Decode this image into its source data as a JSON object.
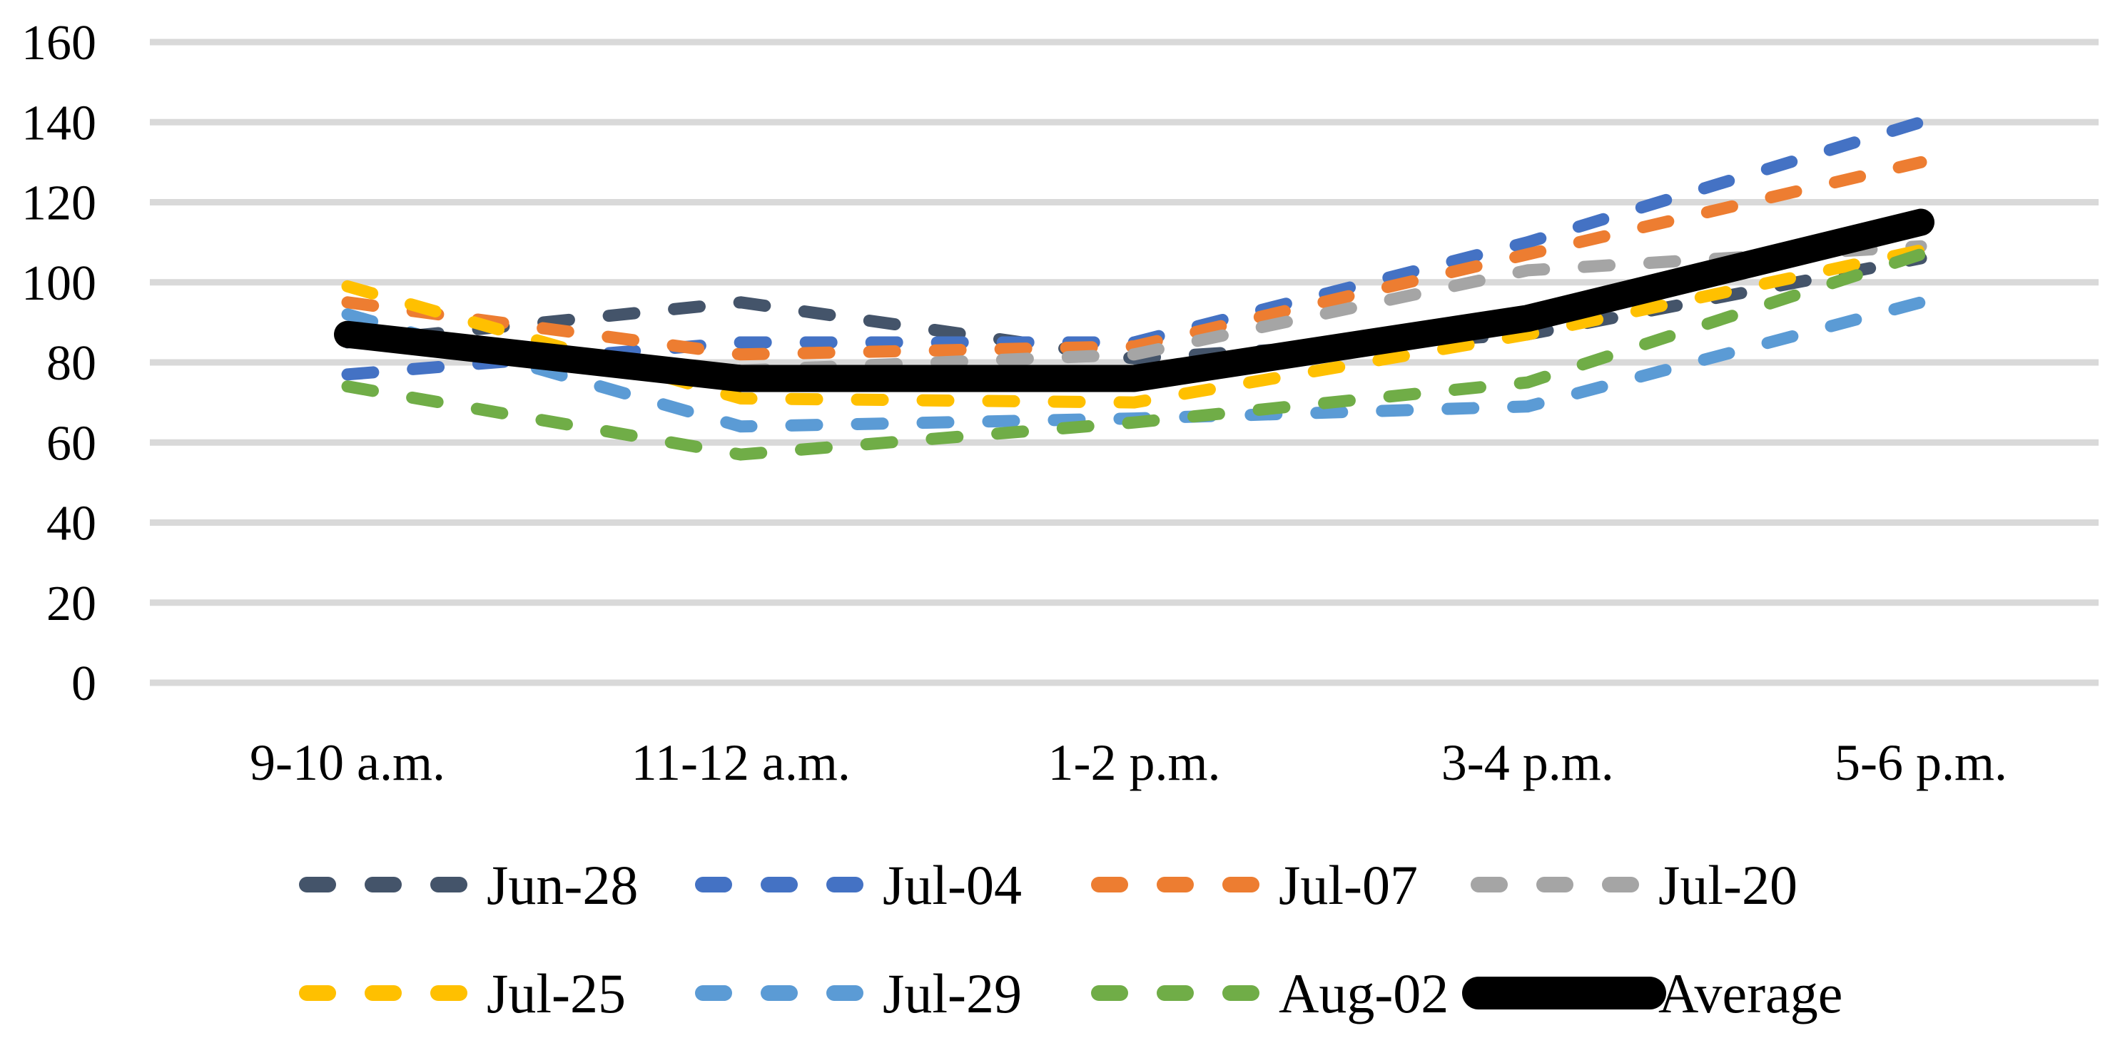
{
  "chart_data": {
    "type": "line",
    "title": "",
    "xlabel": "",
    "ylabel": "",
    "categories": [
      "9-10 a.m.",
      "11-12 a.m.",
      "1-2 p.m.",
      "3-4 p.m.",
      "5-6 p.m."
    ],
    "series": [
      {
        "name": "Jun-28",
        "color": "#44546A",
        "style": "dashed",
        "values": [
          85,
          95,
          81,
          87,
          106
        ]
      },
      {
        "name": "Jul-04",
        "color": "#4472C4",
        "style": "dashed",
        "values": [
          77,
          85,
          85,
          110,
          140
        ]
      },
      {
        "name": "Jul-07",
        "color": "#ED7D31",
        "style": "dashed",
        "values": [
          95,
          82,
          84,
          107,
          130
        ]
      },
      {
        "name": "Jul-20",
        "color": "#A5A5A5",
        "style": "dashed",
        "values": [
          87,
          78,
          82,
          103,
          109
        ]
      },
      {
        "name": "Jul-25",
        "color": "#FFC000",
        "style": "dashed",
        "values": [
          99,
          71,
          70,
          87,
          108
        ]
      },
      {
        "name": "Jul-29",
        "color": "#5B9BD5",
        "style": "dashed",
        "values": [
          92,
          64,
          66,
          69,
          95
        ]
      },
      {
        "name": "Aug-02",
        "color": "#70AD47",
        "style": "dashed",
        "values": [
          74,
          57,
          65,
          75,
          107
        ]
      },
      {
        "name": "Average",
        "color": "#000000",
        "style": "solid",
        "values": [
          87,
          76,
          76,
          91,
          115
        ]
      }
    ],
    "ylim": [
      0,
      160
    ],
    "ytick_step": 20,
    "ytick_labels": [
      "0",
      "20",
      "40",
      "60",
      "80",
      "100",
      "120",
      "140",
      "160"
    ],
    "grid": true,
    "gridline_color": "#D9D9D9",
    "text_color": "#000000",
    "background": "#FFFFFF",
    "legend_position": "bottom",
    "legend_rows": [
      [
        "Jun-28",
        "Jul-04",
        "Jul-07",
        "Jul-20"
      ],
      [
        "Jul-25",
        "Jul-29",
        "Aug-02",
        "Average"
      ]
    ]
  }
}
